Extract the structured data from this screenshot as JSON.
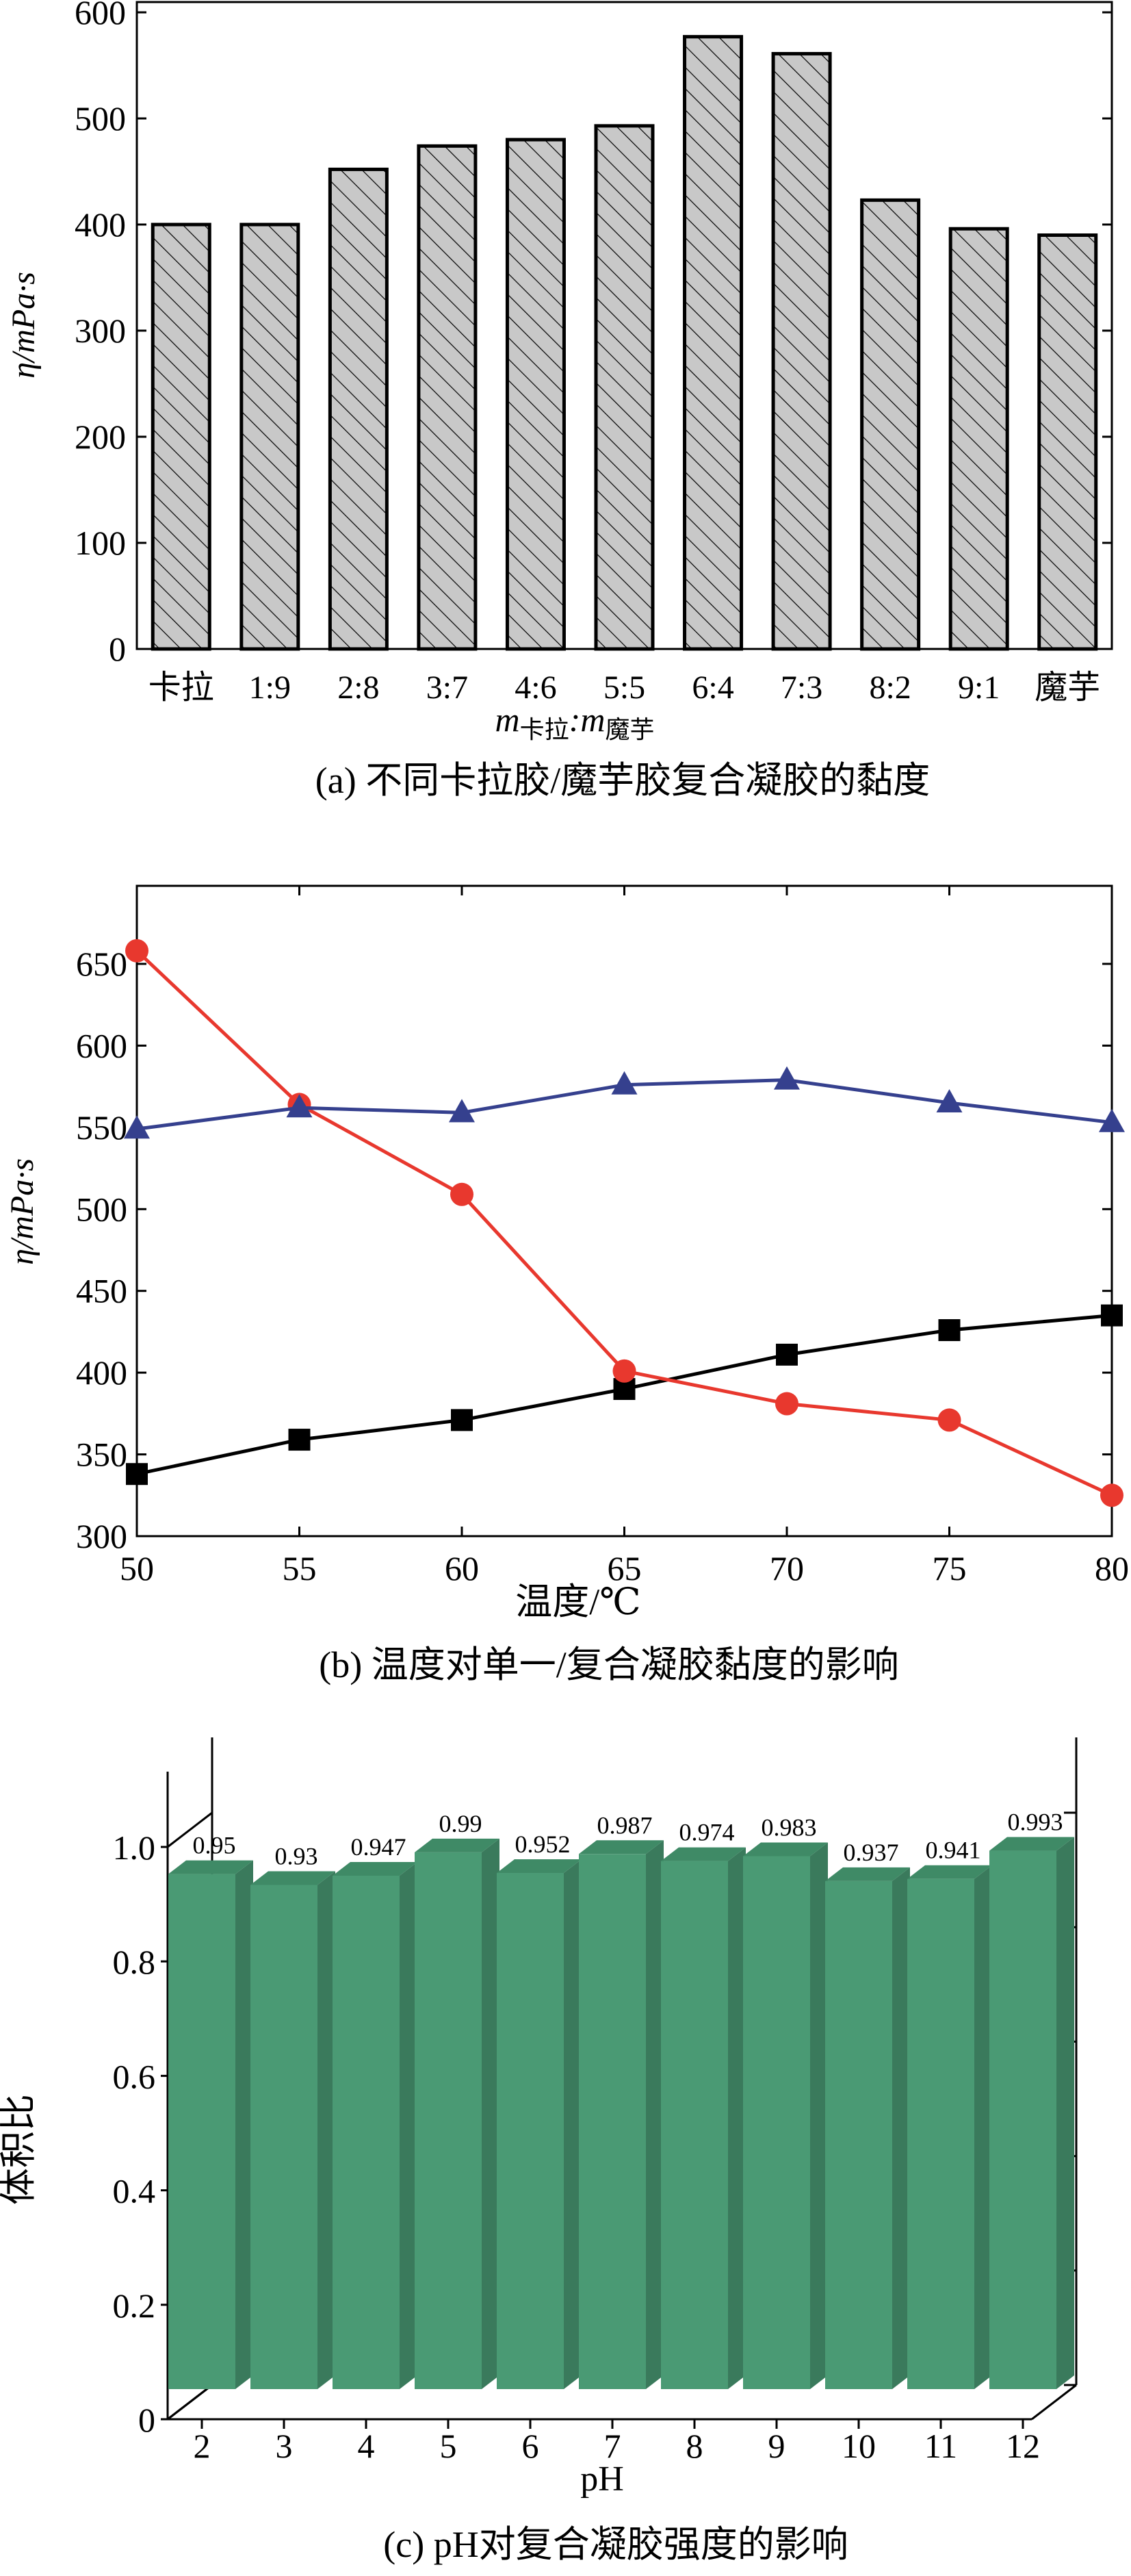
{
  "chart_data": [
    {
      "type": "bar",
      "caption": "(a) 不同卡拉胶/魔芋胶复合凝胶的黏度",
      "ylabel": "η/mPa·s",
      "xlabel": {
        "var": "m",
        "sub1": "卡拉",
        "sep": ":",
        "sub2": "魔芋"
      },
      "categories": [
        "卡拉",
        "1:9",
        "2:8",
        "3:7",
        "4:6",
        "5:5",
        "6:4",
        "7:3",
        "8:2",
        "9:1",
        "魔芋"
      ],
      "values": [
        400,
        400,
        452,
        474,
        480,
        493,
        577,
        561,
        423,
        396,
        390
      ],
      "ylim": [
        0,
        620
      ],
      "yticks": [
        0,
        100,
        200,
        300,
        400,
        500,
        600
      ],
      "bar_fill": "#c8c8c8",
      "hatch": "diagonal"
    },
    {
      "type": "line",
      "caption": "(b) 温度对单一/复合凝胶黏度的影响",
      "ylabel": "η/mPa·s",
      "xlabel": "温度/℃",
      "x": [
        50,
        55,
        60,
        65,
        70,
        75,
        80
      ],
      "xlim": [
        50,
        80
      ],
      "ylim": [
        300,
        675
      ],
      "xticks": [
        50,
        55,
        60,
        65,
        70,
        75,
        80
      ],
      "yticks": [
        300,
        350,
        400,
        450,
        500,
        550,
        600,
        650
      ],
      "series": [
        {
          "marker": "square",
          "color": "#000000",
          "values": [
            338,
            359,
            371,
            390,
            411,
            426,
            435
          ]
        },
        {
          "marker": "circle",
          "color": "#e8382e",
          "values": [
            658,
            564,
            509,
            401,
            381,
            371,
            325
          ]
        },
        {
          "marker": "triangle",
          "color": "#35408e",
          "values": [
            549,
            562,
            559,
            576,
            579,
            565,
            553
          ]
        }
      ]
    },
    {
      "type": "bar",
      "caption": "(c) pH对复合凝胶强度的影响",
      "ylabel": "体积比",
      "xlabel": "pH",
      "categories": [
        "2",
        "3",
        "4",
        "5",
        "6",
        "7",
        "8",
        "9",
        "10",
        "11",
        "12"
      ],
      "values": [
        0.95,
        0.93,
        0.947,
        0.99,
        0.952,
        0.987,
        0.974,
        0.983,
        0.937,
        0.941,
        0.993
      ],
      "data_labels": [
        "0.95",
        "0.93",
        "0.947",
        "0.99",
        "0.952",
        "0.987",
        "0.974",
        "0.983",
        "0.937",
        "0.941",
        "0.993"
      ],
      "ylim": [
        0,
        1.0
      ],
      "yticks": [
        "0",
        "0.2",
        "0.4",
        "0.6",
        "0.8",
        "1.0"
      ],
      "style": "3d",
      "bar_color": "#4a9a74"
    }
  ]
}
